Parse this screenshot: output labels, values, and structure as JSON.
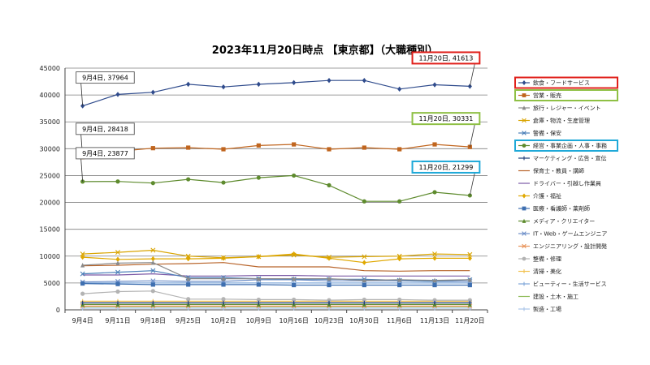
{
  "chart_data": {
    "type": "line",
    "title": "2023年11月20日時点 【東京都】（大職種別）",
    "xlabel": "",
    "ylabel": "",
    "ylim": [
      0,
      45000
    ],
    "yticks": [
      0,
      5000,
      10000,
      15000,
      20000,
      25000,
      30000,
      35000,
      40000,
      45000
    ],
    "grid": true,
    "legend_position": "right",
    "categories": [
      "9月4日",
      "9月11日",
      "9月18日",
      "9月25日",
      "10月2日",
      "10月9日",
      "10月16日",
      "10月23日",
      "10月30日",
      "11月6日",
      "11月13日",
      "11月20日"
    ],
    "series": [
      {
        "name": "飲食・フードサービス",
        "color": "#2f4b8c",
        "marker": "diamond",
        "values": [
          37964,
          40100,
          40500,
          42000,
          41500,
          42000,
          42300,
          42700,
          42700,
          41100,
          41900,
          41613
        ]
      },
      {
        "name": "営業・販売",
        "color": "#c0651e",
        "marker": "square",
        "values": [
          28418,
          29500,
          30100,
          30200,
          29900,
          30600,
          30800,
          29900,
          30200,
          29900,
          30800,
          30331
        ]
      },
      {
        "name": "旅行・レジャー・イベント",
        "color": "#8a8a8a",
        "marker": "triangle",
        "values": [
          8300,
          8700,
          8800,
          5800,
          5800,
          5800,
          5800,
          5800,
          5500,
          5600,
          5500,
          5600
        ]
      },
      {
        "name": "倉庫・物流・生産管理",
        "color": "#d9a400",
        "marker": "x",
        "values": [
          10400,
          10700,
          11100,
          10000,
          9700,
          9900,
          10200,
          9800,
          9900,
          10000,
          10400,
          10300
        ]
      },
      {
        "name": "警備・保安",
        "color": "#4a7fb8",
        "marker": "x",
        "values": [
          6700,
          7000,
          7300,
          6000,
          6000,
          5800,
          5700,
          5700,
          5700,
          5500,
          5300,
          5600
        ]
      },
      {
        "name": "経営・事業企画・人事・事務",
        "color": "#5e8b2e",
        "marker": "circle",
        "values": [
          23877,
          23900,
          23600,
          24300,
          23700,
          24600,
          25000,
          23200,
          20200,
          20200,
          21900,
          21299
        ]
      },
      {
        "name": "マーケティング・広告・宣伝",
        "color": "#1f3c78",
        "marker": "plus",
        "values": [
          1300,
          1300,
          1300,
          1300,
          1300,
          1300,
          1300,
          1300,
          1300,
          1300,
          1300,
          1300
        ]
      },
      {
        "name": "保育士・教員・講師",
        "color": "#b8642a",
        "marker": "none",
        "values": [
          8200,
          8300,
          8500,
          8600,
          8800,
          8000,
          8000,
          8000,
          7300,
          7200,
          7300,
          7300
        ]
      },
      {
        "name": "ドライバー・引越し作業員",
        "color": "#7c5aa6",
        "marker": "none",
        "values": [
          6500,
          6500,
          6700,
          6300,
          6300,
          6400,
          6400,
          6300,
          6300,
          6300,
          6300,
          6300
        ]
      },
      {
        "name": "介護・福祉",
        "color": "#e0a800",
        "marker": "diamond",
        "values": [
          9800,
          9400,
          9500,
          9500,
          9600,
          9900,
          10400,
          9600,
          8800,
          9500,
          9600,
          9600
        ]
      },
      {
        "name": "医療・看護師・薬剤師",
        "color": "#3e6fb0",
        "marker": "square",
        "values": [
          4900,
          4800,
          4700,
          4700,
          4700,
          4700,
          4600,
          4600,
          4600,
          4600,
          4600,
          4600
        ]
      },
      {
        "name": "メディア・クリエイター",
        "color": "#5e8b2e",
        "marker": "triangle",
        "values": [
          1000,
          1000,
          1000,
          1000,
          1000,
          1000,
          1000,
          1000,
          1000,
          1000,
          1000,
          1000
        ]
      },
      {
        "name": "IT・Web・ゲームエンジニア",
        "color": "#6d8fc9",
        "marker": "x",
        "values": [
          5200,
          5300,
          5400,
          5300,
          5300,
          5600,
          5600,
          5400,
          5400,
          5400,
          5300,
          5300
        ]
      },
      {
        "name": "エンジニアリング・設計開発",
        "color": "#e8935a",
        "marker": "x",
        "values": [
          700,
          700,
          700,
          700,
          700,
          700,
          700,
          700,
          700,
          700,
          700,
          700
        ]
      },
      {
        "name": "整備・修理",
        "color": "#b3b3b3",
        "marker": "circle",
        "values": [
          3000,
          3400,
          3500,
          2000,
          2000,
          1900,
          1900,
          1800,
          1900,
          1900,
          1800,
          1800
        ]
      },
      {
        "name": "清掃・美化",
        "color": "#f2c14e",
        "marker": "plus",
        "values": [
          1600,
          1600,
          1600,
          1600,
          1600,
          1600,
          1600,
          1600,
          1600,
          1600,
          1600,
          1600
        ]
      },
      {
        "name": "ビューティー・生活サービス",
        "color": "#7fa7d9",
        "marker": "plus",
        "values": [
          5000,
          5000,
          5000,
          5000,
          5000,
          5000,
          5000,
          5000,
          5000,
          5000,
          5000,
          5000
        ]
      },
      {
        "name": "建設・土木・施工",
        "color": "#8fbc5a",
        "marker": "none",
        "values": [
          600,
          600,
          600,
          600,
          600,
          600,
          600,
          600,
          600,
          600,
          600,
          600
        ]
      },
      {
        "name": "製造・工場",
        "color": "#a9c4e8",
        "marker": "plus",
        "values": [
          300,
          300,
          300,
          300,
          300,
          300,
          300,
          300,
          300,
          300,
          300,
          300
        ]
      }
    ],
    "annotations": [
      {
        "text": "9月4日, 37964",
        "series": 0,
        "point": 0,
        "color": "#555555",
        "side": "above"
      },
      {
        "text": "9月4日, 28418",
        "series": 1,
        "point": 0,
        "color": "#555555",
        "side": "above"
      },
      {
        "text": "9月4日, 23877",
        "series": 5,
        "point": 0,
        "color": "#555555",
        "side": "above"
      },
      {
        "text": "11月20日, 41613",
        "series": 0,
        "point": 11,
        "color": "#e0201b",
        "side": "above"
      },
      {
        "text": "11月20日, 30331",
        "series": 1,
        "point": 11,
        "color": "#8fc045",
        "side": "above"
      },
      {
        "text": "11月20日, 21299",
        "series": 5,
        "point": 11,
        "color": "#1fa9d8",
        "side": "above"
      }
    ],
    "legend_highlights": [
      {
        "series": 0,
        "color": "#e0201b"
      },
      {
        "series": 1,
        "color": "#8fc045"
      },
      {
        "series": 5,
        "color": "#1fa9d8"
      }
    ]
  }
}
